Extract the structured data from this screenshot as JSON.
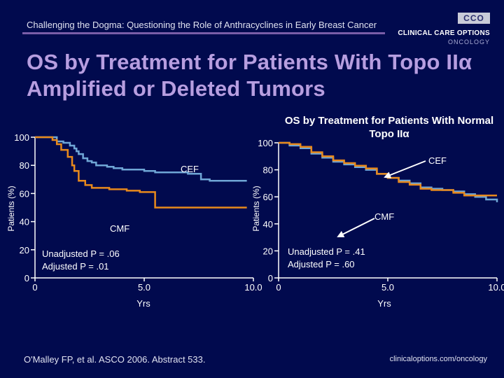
{
  "header": {
    "slide_title": "Challenging the Dogma: Questioning the Role of Anthracyclines in Early Breast Cancer",
    "logo_box": "CCO",
    "logo_line1": "CLINICAL CARE OPTIONS",
    "logo_line2": "ONCOLOGY"
  },
  "main_title": "OS by Treatment for Patients With Topo IIα Amplified or Deleted Tumors",
  "colors": {
    "background": "#010a4e",
    "title": "#b79ee0",
    "cef": "#6fa6d6",
    "cmf": "#e8891c"
  },
  "chart_data": [
    {
      "type": "line",
      "title": "",
      "xlabel": "Yrs",
      "ylabel": "Patients (%)",
      "xlim": [
        0,
        10
      ],
      "ylim": [
        0,
        100
      ],
      "xticks": [
        "0",
        "5.0",
        "10.0"
      ],
      "yticks": [
        "0",
        "20",
        "40",
        "60",
        "80",
        "100"
      ],
      "series": [
        {
          "name": "CEF",
          "x": [
            0,
            0.3,
            0.9,
            1.0,
            1.3,
            1.6,
            1.8,
            1.9,
            2.0,
            2.2,
            2.4,
            2.6,
            2.8,
            3.0,
            3.3,
            3.6,
            3.8,
            4.0,
            4.2,
            4.5,
            4.8,
            5.0,
            5.3,
            5.5,
            5.7,
            6.0,
            6.3,
            6.5,
            6.8,
            7.0,
            7.3,
            7.6,
            7.8,
            8.0,
            8.5,
            9.0,
            9.4,
            9.7
          ],
          "y": [
            100,
            100,
            100,
            97,
            96,
            94,
            92,
            90,
            88,
            85,
            83,
            82,
            80,
            80,
            79,
            78,
            78,
            77,
            77,
            77,
            77,
            76,
            76,
            75,
            75,
            75,
            75,
            75,
            75,
            74,
            74,
            70,
            70,
            69,
            69,
            69,
            69,
            69
          ]
        },
        {
          "name": "CMF",
          "x": [
            0,
            0.3,
            0.6,
            0.8,
            1.0,
            1.2,
            1.5,
            1.7,
            1.8,
            2.0,
            2.3,
            2.6,
            3.0,
            3.4,
            3.8,
            4.2,
            4.5,
            4.8,
            5.2,
            5.5,
            5.7,
            6.0,
            6.5,
            7.0,
            7.5,
            8.0,
            8.5,
            9.0,
            9.4,
            9.7
          ],
          "y": [
            100,
            100,
            100,
            98,
            95,
            91,
            86,
            80,
            76,
            69,
            66,
            64,
            64,
            63,
            63,
            62,
            62,
            61,
            61,
            50,
            50,
            50,
            50,
            50,
            50,
            50,
            50,
            50,
            50,
            50
          ]
        }
      ],
      "annotations": {
        "cef_label": "CEF",
        "cmf_label": "CMF",
        "stats_line1": "Unadjusted P = .06",
        "stats_line2": "Adjusted P = .01"
      }
    },
    {
      "type": "line",
      "title": "OS by Treatment for Patients With Normal Topo IIα",
      "xlabel": "Yrs",
      "ylabel": "Patients (%)",
      "xlim": [
        0,
        10
      ],
      "ylim": [
        0,
        100
      ],
      "xticks": [
        "0",
        "5.0",
        "10.0"
      ],
      "yticks": [
        "0",
        "20",
        "40",
        "60",
        "80",
        "100"
      ],
      "series": [
        {
          "name": "CEF",
          "x": [
            0,
            0.5,
            1.0,
            1.5,
            2.0,
            2.5,
            3.0,
            3.5,
            4.0,
            4.5,
            5.0,
            5.5,
            6.0,
            6.5,
            7.0,
            7.5,
            8.0,
            8.5,
            9.0,
            9.5,
            10.0
          ],
          "y": [
            100,
            98,
            96,
            92,
            89,
            86,
            84,
            82,
            80,
            77,
            74,
            72,
            70,
            67,
            66,
            65,
            64,
            62,
            60,
            58,
            56
          ]
        },
        {
          "name": "CMF",
          "x": [
            0,
            0.5,
            1.0,
            1.5,
            2.0,
            2.5,
            3.0,
            3.5,
            4.0,
            4.5,
            5.0,
            5.5,
            6.0,
            6.5,
            7.0,
            7.5,
            8.0,
            8.5,
            9.0,
            9.5,
            10.0
          ],
          "y": [
            100,
            99,
            97,
            93,
            90,
            87,
            85,
            83,
            81,
            77,
            74,
            71,
            69,
            66,
            65,
            65,
            63,
            61,
            61,
            61,
            61
          ]
        }
      ],
      "annotations": {
        "cef_label": "CEF",
        "cmf_label": "CMF",
        "stats_line1": "Unadjusted P = .41",
        "stats_line2": "Adjusted P = .60"
      }
    }
  ],
  "footer": {
    "citation": "O'Malley FP, et al. ASCO 2006. Abstract 533.",
    "url": "clinicaloptions.com/oncology"
  }
}
